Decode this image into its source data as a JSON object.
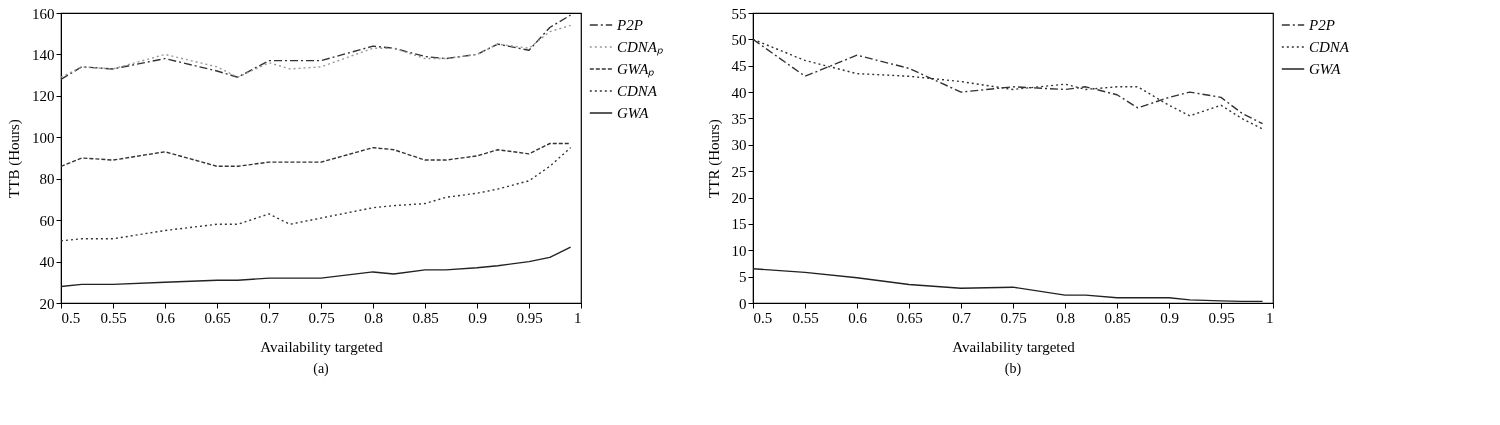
{
  "chart_data": [
    {
      "type": "line",
      "xlabel": "Availability targeted",
      "ylabel": "TTB (Hours)",
      "annotations": [
        "(a)"
      ],
      "xlim": [
        0.5,
        1
      ],
      "xticks": [
        0.5,
        0.55,
        0.6,
        0.65,
        0.7,
        0.75,
        0.8,
        0.85,
        0.9,
        0.95,
        1
      ],
      "ylim": [
        20,
        160
      ],
      "yticks": [
        20,
        40,
        60,
        80,
        100,
        120,
        140,
        160
      ],
      "legend": "top right",
      "grid": false,
      "marker": "none",
      "x": [
        0.5,
        0.52,
        0.55,
        0.6,
        0.65,
        0.67,
        0.7,
        0.72,
        0.75,
        0.8,
        0.82,
        0.85,
        0.87,
        0.9,
        0.92,
        0.95,
        0.97,
        0.99
      ],
      "series": [
        {
          "name": "P2P",
          "color": "#333333",
          "line_style": "dashdot",
          "values": [
            128,
            134,
            133,
            138,
            132,
            129,
            137,
            137,
            137,
            144,
            143,
            139,
            138,
            140,
            145,
            142,
            153,
            159
          ]
        },
        {
          "name": "CDNAₚ",
          "color": "#999999",
          "line_style": "dotted",
          "values": [
            129,
            134,
            133,
            140,
            134,
            129,
            136,
            133,
            134,
            143,
            143,
            138,
            138,
            140,
            145,
            143,
            151,
            154
          ]
        },
        {
          "name": "GWAₚ",
          "color": "#333333",
          "line_style": "dashed",
          "values": [
            86,
            90,
            89,
            93,
            86,
            86,
            88,
            88,
            88,
            95,
            94,
            89,
            89,
            91,
            94,
            92,
            97,
            97
          ]
        },
        {
          "name": "CDNA",
          "color": "#333333",
          "line_style": "dotted",
          "values": [
            50,
            51,
            51,
            55,
            58,
            58,
            63,
            58,
            61,
            66,
            67,
            68,
            71,
            73,
            75,
            79,
            86,
            95
          ]
        },
        {
          "name": "GWA",
          "color": "#222222",
          "line_style": "solid",
          "values": [
            28,
            29,
            29,
            30,
            31,
            31,
            32,
            32,
            32,
            35,
            34,
            36,
            36,
            37,
            38,
            40,
            42,
            47
          ]
        }
      ]
    },
    {
      "type": "line",
      "xlabel": "Availability targeted",
      "ylabel": "TTR (Hours)",
      "annotations": [
        "(b)"
      ],
      "xlim": [
        0.5,
        1
      ],
      "xticks": [
        0.5,
        0.55,
        0.6,
        0.65,
        0.7,
        0.75,
        0.8,
        0.85,
        0.9,
        0.95,
        1
      ],
      "ylim": [
        0,
        55
      ],
      "yticks": [
        0,
        5,
        10,
        15,
        20,
        25,
        30,
        35,
        40,
        45,
        50,
        55
      ],
      "legend": "top right",
      "grid": false,
      "marker": "none",
      "x": [
        0.5,
        0.55,
        0.6,
        0.65,
        0.7,
        0.75,
        0.8,
        0.82,
        0.85,
        0.87,
        0.9,
        0.92,
        0.95,
        0.97,
        0.99
      ],
      "series": [
        {
          "name": "P2P",
          "color": "#333333",
          "line_style": "dashdot",
          "values": [
            50,
            43,
            47,
            44.5,
            40,
            41,
            40.5,
            41,
            39.5,
            37,
            39,
            40,
            39,
            36,
            34
          ]
        },
        {
          "name": "CDNA",
          "color": "#333333",
          "line_style": "dotted",
          "values": [
            50,
            46,
            43.5,
            43,
            42,
            40.5,
            41.5,
            40.5,
            41,
            41,
            37.5,
            35.5,
            37.5,
            35,
            33
          ]
        },
        {
          "name": "GWA",
          "color": "#222222",
          "line_style": "solid",
          "values": [
            6.5,
            5.8,
            4.8,
            3.5,
            2.8,
            3,
            1.5,
            1.5,
            1,
            1,
            1,
            0.6,
            0.4,
            0.3,
            0.3
          ]
        }
      ]
    }
  ]
}
